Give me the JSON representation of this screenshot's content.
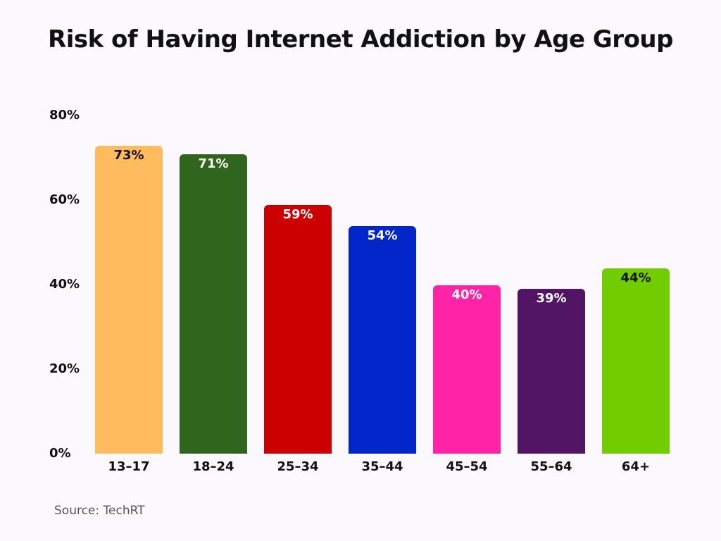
{
  "chart_data": {
    "type": "bar",
    "title": "Risk of Having Internet Addiction by Age Group",
    "xlabel": "",
    "ylabel": "",
    "categories": [
      "13–17",
      "18–24",
      "25–34",
      "35–44",
      "45–54",
      "55–64",
      "64+"
    ],
    "values": [
      73,
      71,
      59,
      54,
      40,
      39,
      44
    ],
    "value_labels": [
      "73%",
      "71%",
      "59%",
      "54%",
      "40%",
      "39%",
      "44%"
    ],
    "colors": [
      "#FFBB5C",
      "#2F651C",
      "#CC0000",
      "#0026C9",
      "#FF24A7",
      "#521464",
      "#71CC00"
    ],
    "label_colors": [
      "#111111",
      "#FFFFFF",
      "#FFFFFF",
      "#FFFFFF",
      "#FFFFFF",
      "#FFFFFF",
      "#111111"
    ],
    "yticks": [
      "0%",
      "20%",
      "40%",
      "60%",
      "80%"
    ],
    "ylim": [
      0,
      80
    ],
    "grid": false,
    "legend": null,
    "source": "Source: TechRT"
  }
}
